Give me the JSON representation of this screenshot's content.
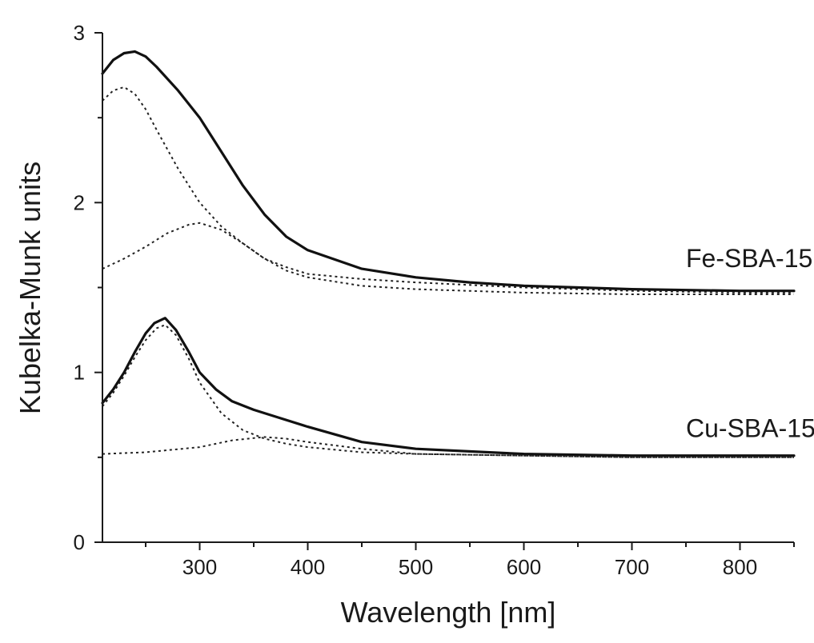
{
  "chart_data": {
    "type": "line",
    "title": "",
    "xlabel": "Wavelength [nm]",
    "ylabel": "Kubelka-Munk units",
    "xlim": [
      210,
      850
    ],
    "ylim": [
      0,
      3
    ],
    "x_ticks": [
      300,
      400,
      500,
      600,
      700,
      800
    ],
    "x_minor_ticks": [
      250,
      350,
      450,
      550,
      650,
      750,
      850
    ],
    "y_ticks": [
      0,
      1,
      2,
      3
    ],
    "y_minor_ticks": [
      0.5,
      1.5,
      2.5
    ],
    "grid": false,
    "legend": "none",
    "series_labels": [
      {
        "text": "Fe-SBA-15",
        "x": 750,
        "y": 1.62
      },
      {
        "text": "Cu-SBA-15",
        "x": 750,
        "y": 0.62
      }
    ],
    "series": [
      {
        "style": "solid",
        "x": [
          210,
          220,
          230,
          240,
          250,
          260,
          280,
          300,
          320,
          340,
          360,
          380,
          400,
          450,
          500,
          550,
          600,
          700,
          800,
          850
        ],
        "y": [
          2.76,
          2.84,
          2.88,
          2.89,
          2.86,
          2.8,
          2.66,
          2.5,
          2.3,
          2.1,
          1.93,
          1.8,
          1.72,
          1.61,
          1.56,
          1.53,
          1.51,
          1.49,
          1.48,
          1.48
        ]
      },
      {
        "style": "dotted",
        "x": [
          210,
          220,
          230,
          240,
          250,
          260,
          280,
          300,
          320,
          340,
          360,
          380,
          400,
          450,
          500,
          600,
          700,
          800,
          850
        ],
        "y": [
          2.6,
          2.66,
          2.68,
          2.64,
          2.55,
          2.43,
          2.2,
          2.0,
          1.86,
          1.76,
          1.67,
          1.62,
          1.58,
          1.55,
          1.53,
          1.5,
          1.48,
          1.47,
          1.47
        ]
      },
      {
        "style": "dotted",
        "x": [
          210,
          230,
          250,
          270,
          290,
          300,
          320,
          340,
          360,
          380,
          400,
          450,
          500,
          600,
          700,
          800,
          850
        ],
        "y": [
          1.61,
          1.67,
          1.74,
          1.82,
          1.87,
          1.88,
          1.84,
          1.76,
          1.67,
          1.6,
          1.56,
          1.51,
          1.49,
          1.47,
          1.46,
          1.46,
          1.46
        ]
      },
      {
        "style": "solid",
        "x": [
          210,
          220,
          230,
          240,
          250,
          258,
          268,
          278,
          290,
          300,
          315,
          330,
          350,
          370,
          400,
          450,
          500,
          600,
          700,
          800,
          850
        ],
        "y": [
          0.82,
          0.9,
          1.0,
          1.12,
          1.23,
          1.29,
          1.32,
          1.25,
          1.12,
          1.0,
          0.9,
          0.83,
          0.78,
          0.74,
          0.68,
          0.59,
          0.55,
          0.52,
          0.51,
          0.51,
          0.51
        ]
      },
      {
        "style": "dotted",
        "x": [
          210,
          220,
          230,
          240,
          250,
          260,
          268,
          278,
          290,
          300,
          320,
          340,
          360,
          380,
          400,
          450,
          500,
          600,
          700,
          800,
          850
        ],
        "y": [
          0.8,
          0.88,
          0.98,
          1.09,
          1.19,
          1.26,
          1.28,
          1.22,
          1.08,
          0.94,
          0.76,
          0.66,
          0.61,
          0.58,
          0.56,
          0.53,
          0.52,
          0.51,
          0.5,
          0.5,
          0.5
        ]
      },
      {
        "style": "dotted",
        "x": [
          210,
          250,
          300,
          330,
          360,
          380,
          400,
          450,
          500,
          600,
          700,
          800,
          850
        ],
        "y": [
          0.52,
          0.53,
          0.56,
          0.6,
          0.62,
          0.61,
          0.59,
          0.55,
          0.52,
          0.51,
          0.5,
          0.5,
          0.5
        ]
      }
    ]
  }
}
